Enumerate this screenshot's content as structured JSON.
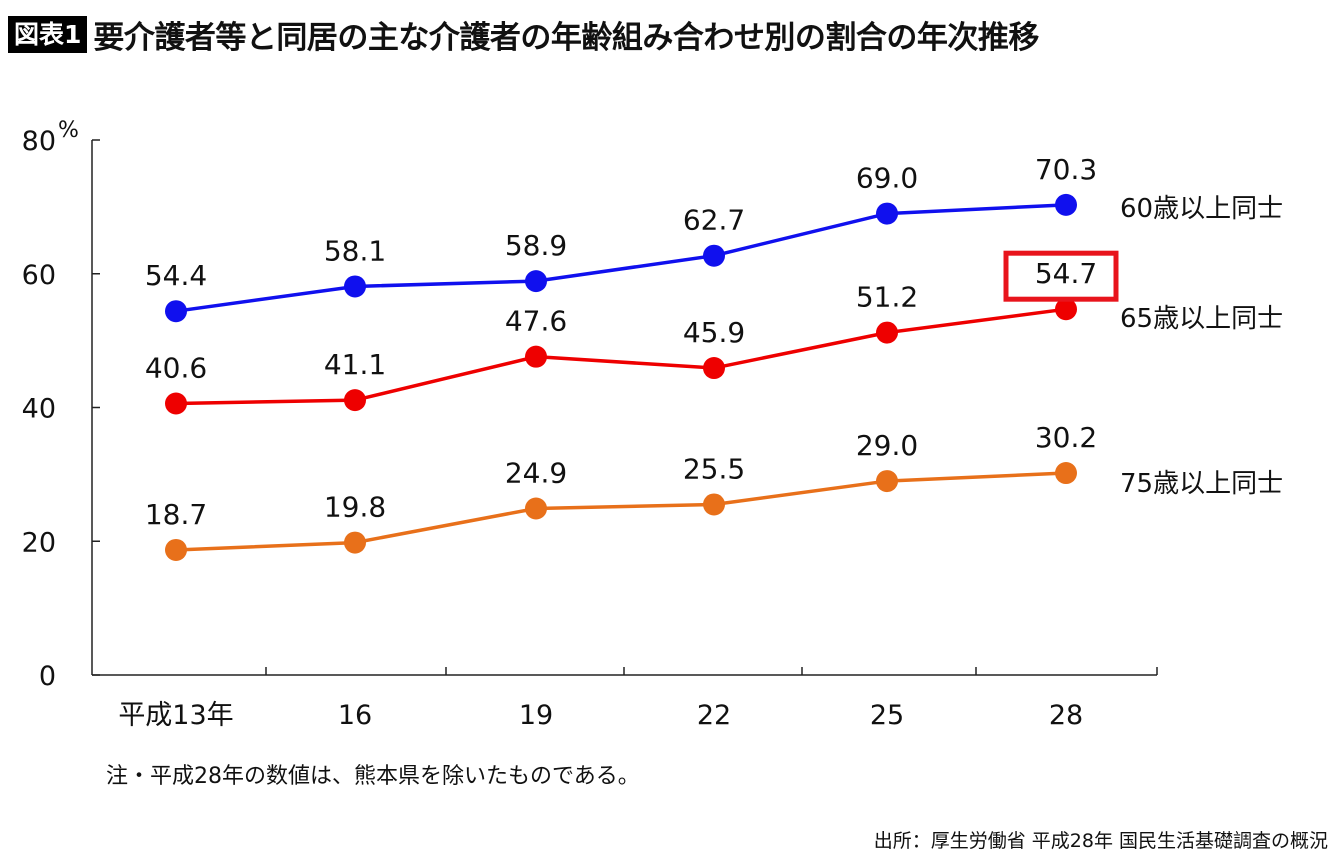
{
  "header": {
    "badge": "図表1",
    "title": "要介護者等と同居の主な介護者の年齢組み合わせ別の割合の年次推移"
  },
  "chart_data": {
    "type": "line",
    "categories": [
      "平成13年",
      "16",
      "19",
      "22",
      "25",
      "28"
    ],
    "y_unit": "%",
    "ylim": [
      0,
      80
    ],
    "yticks": [
      "0",
      "20",
      "40",
      "60",
      "80"
    ],
    "grid": false,
    "series": [
      {
        "name": "60歳以上同士",
        "color": "#1010ee",
        "values": [
          54.4,
          58.1,
          58.9,
          62.7,
          69.0,
          70.3
        ],
        "labels": [
          "54.4",
          "58.1",
          "58.9",
          "62.7",
          "69.0",
          "70.3"
        ]
      },
      {
        "name": "65歳以上同士",
        "color": "#ee0000",
        "values": [
          40.6,
          41.1,
          47.6,
          45.9,
          51.2,
          54.7
        ],
        "labels": [
          "40.6",
          "41.1",
          "47.6",
          "45.9",
          "51.2",
          "54.7"
        ]
      },
      {
        "name": "75歳以上同士",
        "color": "#e8701a",
        "values": [
          18.7,
          19.8,
          24.9,
          25.5,
          29.0,
          30.2
        ],
        "labels": [
          "18.7",
          "19.8",
          "24.9",
          "25.5",
          "29.0",
          "30.2"
        ]
      }
    ],
    "highlight": {
      "series": 1,
      "index": 5,
      "color": "#e8141c"
    }
  },
  "note": "注・平成28年の数値は、熊本県を除いたものである。",
  "source": "出所：厚生労働省 平成28年 国民生活基礎調査の概況"
}
